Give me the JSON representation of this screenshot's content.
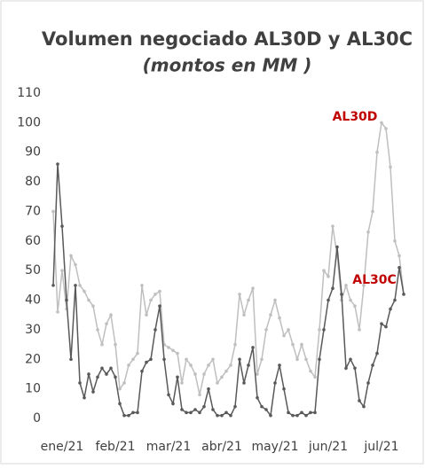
{
  "chart_data": {
    "type": "line",
    "title": "Volumen negociado AL30D y AL30C",
    "subtitle": "(montos en MM )",
    "categories": [
      null,
      null,
      "ene/21",
      null,
      null,
      null,
      null,
      null,
      null,
      null,
      null,
      null,
      null,
      null,
      "feb/21",
      null,
      null,
      null,
      null,
      null,
      null,
      null,
      null,
      null,
      null,
      null,
      "mar/21",
      null,
      null,
      null,
      null,
      null,
      null,
      null,
      null,
      null,
      null,
      null,
      "abr/21",
      null,
      null,
      null,
      null,
      null,
      null,
      null,
      null,
      null,
      null,
      null,
      "may/21",
      null,
      null,
      null,
      null,
      null,
      null,
      null,
      null,
      null,
      null,
      null,
      "jun/21",
      null,
      null,
      null,
      null,
      null,
      null,
      null,
      null,
      null,
      null,
      null,
      "jul/21",
      null,
      null,
      null,
      null,
      null
    ],
    "series": [
      {
        "name": "AL30D",
        "color": "#bfbfbf",
        "values": [
          70,
          36,
          50,
          37,
          55,
          52,
          45,
          43,
          40,
          38,
          30,
          25,
          32,
          35,
          25,
          10,
          12,
          18,
          20,
          22,
          45,
          35,
          40,
          42,
          43,
          25,
          24,
          23,
          22,
          12,
          20,
          18,
          15,
          8,
          15,
          18,
          20,
          12,
          14,
          16,
          18,
          25,
          42,
          35,
          40,
          44,
          15,
          20,
          30,
          35,
          40,
          34,
          28,
          30,
          25,
          20,
          25,
          20,
          16,
          14,
          30,
          50,
          48,
          65,
          55,
          40,
          45,
          40,
          38,
          30,
          45,
          63,
          70,
          90,
          100,
          98,
          85,
          60,
          55,
          42
        ]
      },
      {
        "name": "AL30C",
        "color": "#595959",
        "values": [
          45,
          86,
          65,
          40,
          20,
          45,
          12,
          7,
          15,
          9,
          14,
          17,
          15,
          17,
          14,
          5,
          1,
          1,
          2,
          2,
          16,
          19,
          20,
          30,
          38,
          20,
          8,
          5,
          14,
          3,
          2,
          2,
          3,
          2,
          4,
          10,
          3,
          1,
          1,
          2,
          1,
          4,
          20,
          12,
          18,
          24,
          7,
          4,
          3,
          1,
          12,
          18,
          10,
          2,
          1,
          1,
          2,
          1,
          2,
          2,
          20,
          30,
          40,
          44,
          58,
          42,
          17,
          20,
          17,
          6,
          4,
          12,
          18,
          22,
          32,
          31,
          37,
          40,
          51,
          42
        ]
      }
    ],
    "annotations": [
      "AL30D",
      "AL30C"
    ],
    "annotation_color": "#c00000",
    "ylim": [
      0,
      110
    ],
    "yticks": [
      0,
      10,
      20,
      30,
      40,
      50,
      60,
      70,
      80,
      90,
      100,
      110
    ],
    "grid": false
  }
}
